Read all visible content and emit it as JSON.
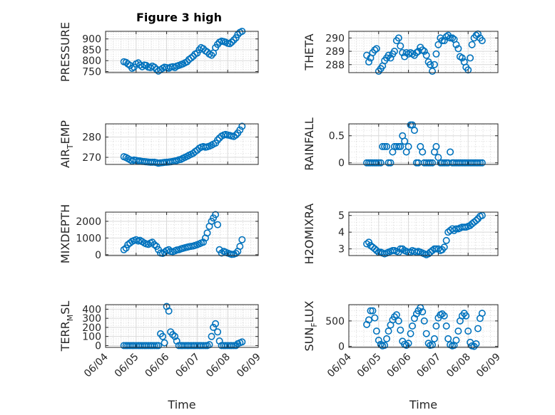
{
  "title": "Figure 3 high",
  "colors": {
    "marker": "#0072BD",
    "axis": "#262626",
    "grid": "#d9d9d9"
  },
  "x_ticks": [
    "06/04",
    "06/05",
    "06/06",
    "06/07",
    "06/08",
    "06/09"
  ],
  "x_label": "Time",
  "chart_data": [
    {
      "type": "scatter",
      "ylabel": "PRESSURE",
      "ylim": [
        745,
        935
      ],
      "yticks": [
        750,
        800,
        850,
        900
      ],
      "ytick_labels": [
        "750",
        "800",
        "850",
        "900"
      ],
      "x": [
        4.6,
        4.67,
        4.73,
        4.8,
        4.87,
        4.93,
        5.0,
        5.07,
        5.13,
        5.2,
        5.27,
        5.33,
        5.4,
        5.47,
        5.53,
        5.6,
        5.67,
        5.73,
        5.8,
        5.87,
        5.93,
        6.0,
        6.07,
        6.13,
        6.2,
        6.27,
        6.33,
        6.4,
        6.47,
        6.53,
        6.6,
        6.67,
        6.73,
        6.8,
        6.87,
        6.93,
        7.0,
        7.07,
        7.13,
        7.2,
        7.27,
        7.33,
        7.4,
        7.47,
        7.53,
        7.6,
        7.67,
        7.73,
        7.8,
        7.87,
        7.93,
        8.0,
        8.07,
        8.13,
        8.2,
        8.27,
        8.33,
        8.4,
        8.47
      ],
      "y": [
        795,
        792,
        785,
        778,
        765,
        770,
        785,
        790,
        780,
        772,
        780,
        778,
        770,
        768,
        775,
        770,
        760,
        752,
        758,
        765,
        770,
        768,
        765,
        770,
        772,
        768,
        775,
        778,
        782,
        785,
        790,
        795,
        805,
        812,
        820,
        830,
        835,
        850,
        860,
        855,
        845,
        840,
        830,
        825,
        835,
        860,
        875,
        885,
        890,
        888,
        885,
        880,
        878,
        885,
        895,
        905,
        920,
        930,
        935
      ]
    },
    {
      "type": "scatter",
      "ylabel": "THETA",
      "ylim": [
        287.4,
        290.5
      ],
      "yticks": [
        288,
        289,
        290
      ],
      "ytick_labels": [
        "288",
        "289",
        "290"
      ],
      "x": [
        4.6,
        4.67,
        4.73,
        4.8,
        4.87,
        4.93,
        5.0,
        5.07,
        5.13,
        5.2,
        5.27,
        5.33,
        5.4,
        5.47,
        5.53,
        5.6,
        5.67,
        5.73,
        5.8,
        5.87,
        5.93,
        6.0,
        6.07,
        6.13,
        6.2,
        6.27,
        6.33,
        6.4,
        6.47,
        6.53,
        6.6,
        6.67,
        6.73,
        6.8,
        6.87,
        6.93,
        7.0,
        7.07,
        7.13,
        7.2,
        7.27,
        7.33,
        7.4,
        7.47,
        7.53,
        7.6,
        7.67,
        7.73,
        7.8,
        7.87,
        7.93,
        8.0,
        8.07,
        8.13,
        8.2,
        8.27,
        8.33,
        8.4,
        8.47
      ],
      "y": [
        288.7,
        288.2,
        288.5,
        288.9,
        289.1,
        289.2,
        287.5,
        287.7,
        287.9,
        288.3,
        288.5,
        288.7,
        288.5,
        288.8,
        289.0,
        289.8,
        290.0,
        289.4,
        288.9,
        288.6,
        288.9,
        288.8,
        288.9,
        288.8,
        288.7,
        288.9,
        289.0,
        289.3,
        289.1,
        289.0,
        288.7,
        288.2,
        288.0,
        287.5,
        288.0,
        288.8,
        289.5,
        290.0,
        289.8,
        289.8,
        290.1,
        290.2,
        290.0,
        290.0,
        289.9,
        289.5,
        289.2,
        288.6,
        288.5,
        288.2,
        287.8,
        287.6,
        288.5,
        289.5,
        290.0,
        290.2,
        290.3,
        290.0,
        289.8
      ]
    },
    {
      "type": "scatter",
      "ylabel": "AIR_TEMP",
      "ylim": [
        266.5,
        286.5
      ],
      "yticks": [
        270,
        280
      ],
      "ytick_labels": [
        "270",
        "280"
      ],
      "x": [
        4.6,
        4.67,
        4.73,
        4.8,
        4.87,
        4.93,
        5.0,
        5.07,
        5.13,
        5.2,
        5.27,
        5.33,
        5.4,
        5.47,
        5.53,
        5.6,
        5.67,
        5.73,
        5.8,
        5.87,
        5.93,
        6.0,
        6.07,
        6.13,
        6.2,
        6.27,
        6.33,
        6.4,
        6.47,
        6.53,
        6.6,
        6.67,
        6.73,
        6.8,
        6.87,
        6.93,
        7.0,
        7.07,
        7.13,
        7.2,
        7.27,
        7.33,
        7.4,
        7.47,
        7.53,
        7.6,
        7.67,
        7.73,
        7.8,
        7.87,
        7.93,
        8.0,
        8.07,
        8.13,
        8.2,
        8.27,
        8.33,
        8.4,
        8.47
      ],
      "y": [
        270.3,
        269.9,
        269.4,
        268.8,
        268.2,
        268.7,
        268.5,
        268.3,
        268.2,
        268.0,
        267.9,
        267.8,
        267.7,
        267.6,
        267.6,
        267.6,
        267.4,
        267.1,
        267.3,
        267.4,
        267.5,
        267.6,
        267.7,
        267.8,
        268.0,
        268.2,
        268.4,
        268.8,
        269.0,
        269.5,
        270.0,
        270.5,
        271.0,
        271.5,
        272.0,
        272.8,
        273.5,
        274.5,
        275.0,
        275.3,
        275.0,
        275.2,
        275.5,
        276.0,
        276.5,
        277.0,
        278.5,
        279.5,
        280.5,
        281.0,
        281.3,
        281.0,
        280.8,
        280.5,
        280.3,
        281.0,
        282.0,
        283.5,
        285.3
      ]
    },
    {
      "type": "scatter",
      "ylabel": "RAINFALL",
      "ylim": [
        -0.03,
        0.72
      ],
      "yticks": [
        0,
        0.5
      ],
      "ytick_labels": [
        "0",
        "0.5"
      ],
      "x": [
        4.6,
        4.67,
        4.73,
        4.8,
        4.87,
        4.93,
        5.0,
        5.07,
        5.13,
        5.2,
        5.27,
        5.33,
        5.4,
        5.47,
        5.53,
        5.6,
        5.67,
        5.73,
        5.8,
        5.87,
        5.93,
        6.0,
        6.07,
        6.13,
        6.2,
        6.27,
        6.33,
        6.4,
        6.47,
        6.53,
        6.6,
        6.67,
        6.73,
        6.8,
        6.87,
        6.93,
        7.0,
        7.07,
        7.13,
        7.2,
        7.27,
        7.33,
        7.4,
        7.47,
        7.53,
        7.6,
        7.67,
        7.73,
        7.8,
        7.87,
        7.93,
        8.0,
        8.07,
        8.13,
        8.2,
        8.27,
        8.33,
        8.4,
        8.47
      ],
      "y": [
        0,
        0,
        0,
        0,
        0,
        0,
        0,
        0,
        0.3,
        0.3,
        0.3,
        0,
        0,
        0.2,
        0.3,
        0.3,
        0.3,
        0.3,
        0.5,
        0.4,
        0.2,
        0.3,
        0.7,
        0.7,
        0.6,
        0,
        0,
        0.3,
        0.2,
        0,
        0,
        0,
        0,
        0,
        0.2,
        0.3,
        0.1,
        0,
        0,
        0,
        0,
        0,
        0.2,
        0,
        0,
        0,
        0,
        0,
        0,
        0,
        0,
        0,
        0,
        0,
        0,
        0,
        0,
        0,
        0
      ]
    },
    {
      "type": "scatter",
      "ylabel": "MIXDEPTH",
      "ylim": [
        -50,
        2550
      ],
      "yticks": [
        0,
        1000,
        2000
      ],
      "ytick_labels": [
        "0",
        "1000",
        "2000"
      ],
      "x": [
        4.6,
        4.67,
        4.73,
        4.8,
        4.87,
        4.93,
        5.0,
        5.07,
        5.13,
        5.2,
        5.27,
        5.33,
        5.4,
        5.47,
        5.53,
        5.6,
        5.67,
        5.73,
        5.8,
        5.87,
        5.93,
        6.0,
        6.07,
        6.13,
        6.2,
        6.27,
        6.33,
        6.4,
        6.47,
        6.53,
        6.6,
        6.67,
        6.73,
        6.8,
        6.87,
        6.93,
        7.0,
        7.07,
        7.13,
        7.2,
        7.27,
        7.33,
        7.4,
        7.47,
        7.53,
        7.6,
        7.67,
        7.73,
        7.8,
        7.87,
        7.93,
        8.0,
        8.07,
        8.13,
        8.2,
        8.27,
        8.33,
        8.4,
        8.47
      ],
      "y": [
        300,
        400,
        600,
        700,
        800,
        850,
        900,
        820,
        860,
        780,
        700,
        650,
        620,
        700,
        750,
        600,
        500,
        300,
        100,
        80,
        150,
        250,
        300,
        200,
        180,
        230,
        280,
        300,
        350,
        380,
        420,
        450,
        480,
        500,
        520,
        560,
        600,
        650,
        700,
        750,
        1000,
        1300,
        1700,
        2000,
        2200,
        2400,
        1800,
        300,
        100,
        200,
        150,
        100,
        50,
        20,
        30,
        80,
        200,
        500,
        900
      ]
    },
    {
      "type": "scatter",
      "ylabel": "H2OMIXRA",
      "ylim": [
        2.6,
        5.2
      ],
      "yticks": [
        3,
        4,
        5
      ],
      "ytick_labels": [
        "3",
        "4",
        "5"
      ],
      "x": [
        4.6,
        4.67,
        4.73,
        4.8,
        4.87,
        4.93,
        5.0,
        5.07,
        5.13,
        5.2,
        5.27,
        5.33,
        5.4,
        5.47,
        5.53,
        5.6,
        5.67,
        5.73,
        5.8,
        5.87,
        5.93,
        6.0,
        6.07,
        6.13,
        6.2,
        6.27,
        6.33,
        6.4,
        6.47,
        6.53,
        6.6,
        6.67,
        6.73,
        6.8,
        6.87,
        6.93,
        7.0,
        7.07,
        7.13,
        7.2,
        7.27,
        7.33,
        7.4,
        7.47,
        7.53,
        7.6,
        7.67,
        7.73,
        7.8,
        7.87,
        7.93,
        8.0,
        8.07,
        8.13,
        8.2,
        8.27,
        8.33,
        8.4,
        8.47
      ],
      "y": [
        3.3,
        3.4,
        3.2,
        3.1,
        3.0,
        2.9,
        2.8,
        2.8,
        2.75,
        2.7,
        2.75,
        2.8,
        2.85,
        2.9,
        2.9,
        2.85,
        2.8,
        3.0,
        3.0,
        2.9,
        2.85,
        2.8,
        2.8,
        2.9,
        2.85,
        2.8,
        2.85,
        2.8,
        2.75,
        2.7,
        2.65,
        2.7,
        2.8,
        2.9,
        3.0,
        3.0,
        3.0,
        2.9,
        2.95,
        3.1,
        3.5,
        4.0,
        4.1,
        4.2,
        4.1,
        4.2,
        4.2,
        4.25,
        4.3,
        4.3,
        4.3,
        4.35,
        4.4,
        4.5,
        4.6,
        4.7,
        4.8,
        4.95,
        5.0
      ]
    },
    {
      "type": "scatter",
      "ylabel": "TERR_MSL",
      "ylim": [
        -20,
        450
      ],
      "yticks": [
        0,
        100,
        200,
        300,
        400
      ],
      "ytick_labels": [
        "0",
        "100",
        "200",
        "300",
        "400"
      ],
      "x": [
        4.6,
        4.67,
        4.73,
        4.8,
        4.87,
        4.93,
        5.0,
        5.07,
        5.13,
        5.2,
        5.27,
        5.33,
        5.4,
        5.47,
        5.53,
        5.6,
        5.67,
        5.73,
        5.8,
        5.87,
        5.93,
        6.0,
        6.07,
        6.13,
        6.2,
        6.27,
        6.33,
        6.4,
        6.47,
        6.53,
        6.6,
        6.67,
        6.73,
        6.8,
        6.87,
        6.93,
        7.0,
        7.07,
        7.13,
        7.2,
        7.27,
        7.33,
        7.4,
        7.47,
        7.53,
        7.6,
        7.67,
        7.73,
        7.8,
        7.87,
        7.93,
        8.0,
        8.07,
        8.13,
        8.2,
        8.27,
        8.33,
        8.4,
        8.47
      ],
      "y": [
        0,
        0,
        0,
        0,
        0,
        0,
        0,
        0,
        0,
        0,
        0,
        0,
        0,
        0,
        0,
        0,
        0,
        0,
        130,
        100,
        30,
        430,
        380,
        150,
        120,
        100,
        50,
        0,
        0,
        0,
        0,
        0,
        0,
        0,
        0,
        0,
        0,
        0,
        0,
        0,
        0,
        0,
        10,
        100,
        200,
        240,
        150,
        50,
        0,
        0,
        0,
        0,
        0,
        0,
        0,
        0,
        20,
        30,
        40
      ]
    },
    {
      "type": "scatter",
      "ylabel": "SUN_FLUX",
      "ylim": [
        -20,
        820
      ],
      "yticks": [
        0,
        500
      ],
      "ytick_labels": [
        "0",
        "500"
      ],
      "x": [
        4.6,
        4.67,
        4.73,
        4.8,
        4.87,
        4.93,
        5.0,
        5.07,
        5.13,
        5.2,
        5.27,
        5.33,
        5.4,
        5.47,
        5.53,
        5.6,
        5.67,
        5.73,
        5.8,
        5.87,
        5.93,
        6.0,
        6.07,
        6.13,
        6.2,
        6.27,
        6.33,
        6.4,
        6.47,
        6.53,
        6.6,
        6.67,
        6.73,
        6.8,
        6.87,
        6.93,
        7.0,
        7.07,
        7.13,
        7.2,
        7.27,
        7.33,
        7.4,
        7.47,
        7.53,
        7.6,
        7.67,
        7.73,
        7.8,
        7.87,
        7.93,
        8.0,
        8.07,
        8.13,
        8.2,
        8.27,
        8.33,
        8.4,
        8.47
      ],
      "y": [
        430,
        520,
        700,
        700,
        560,
        300,
        120,
        40,
        10,
        20,
        150,
        300,
        420,
        520,
        580,
        620,
        500,
        320,
        100,
        40,
        20,
        60,
        250,
        400,
        550,
        640,
        700,
        760,
        680,
        500,
        250,
        60,
        20,
        30,
        150,
        400,
        560,
        620,
        640,
        600,
        400,
        150,
        30,
        10,
        20,
        120,
        300,
        500,
        600,
        650,
        600,
        300,
        80,
        10,
        0,
        50,
        350,
        550,
        650
      ]
    }
  ]
}
